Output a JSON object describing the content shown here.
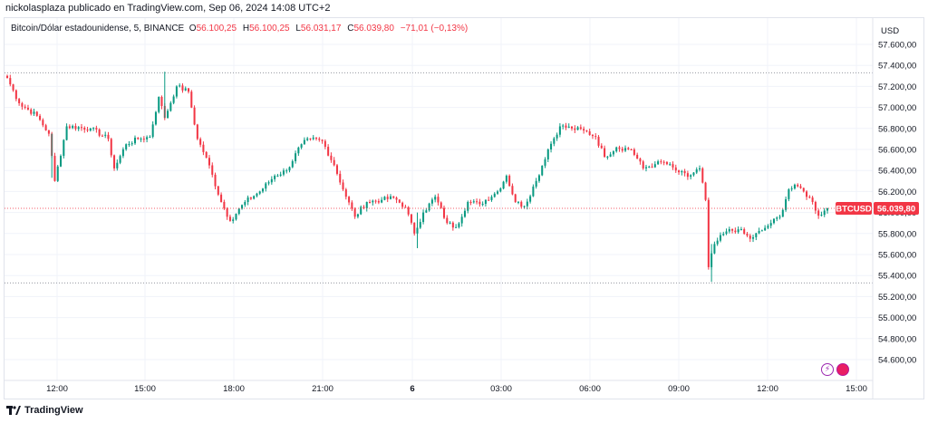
{
  "publisher": "nickolasplaza publicado en TradingView.com, Sep 06, 2024 14:08 UTC+2",
  "legend": {
    "symbol": "Bitcoin/Dólar estadounidense, 5, BINANCE",
    "o_label": "O",
    "o_value": "56.100,25",
    "h_label": "H",
    "h_value": "56.100,25",
    "l_label": "L",
    "l_value": "56.031,17",
    "c_label": "C",
    "c_value": "56.039,80",
    "change": "−71,01 (−0,13%)"
  },
  "brand": "TradingView",
  "colors": {
    "up": "#089981",
    "down": "#f23645",
    "grid": "#f0f3fa",
    "price_tag": "#f23645"
  },
  "icons": [
    "bolt-icon",
    "flag-icon",
    "tradingview-logo-icon"
  ],
  "chart_data": {
    "type": "candlestick",
    "currency_label": "USD",
    "y_ticks": [
      "57.600,00",
      "57.400,00",
      "57.200,00",
      "57.000,00",
      "56.800,00",
      "56.600,00",
      "56.400,00",
      "56.200,00",
      "56.000,00",
      "55.800,00",
      "55.600,00",
      "55.400,00",
      "55.200,00",
      "55.000,00",
      "54.800,00",
      "54.600,00"
    ],
    "y_tick_values": [
      57600,
      57400,
      57200,
      57000,
      56800,
      56600,
      56400,
      56200,
      56000,
      55800,
      55600,
      55400,
      55200,
      55000,
      54800,
      54600
    ],
    "x_ticks": [
      "12:00",
      "15:00",
      "18:00",
      "21:00",
      "6",
      "03:00",
      "06:00",
      "09:00",
      "12:00",
      "15:00"
    ],
    "ylim": [
      54500,
      57700
    ],
    "current_price": {
      "symbol": "BTCUSD",
      "label": "56.039,80",
      "value": 56039.8
    },
    "range_lines": [
      57330,
      55330
    ],
    "anchors": [
      [
        0,
        57280
      ],
      [
        4,
        57040
      ],
      [
        10,
        56920
      ],
      [
        14,
        56750
      ],
      [
        16,
        56300
      ],
      [
        20,
        56820
      ],
      [
        28,
        56800
      ],
      [
        34,
        56700
      ],
      [
        36,
        56420
      ],
      [
        40,
        56650
      ],
      [
        44,
        56700
      ],
      [
        48,
        56720
      ],
      [
        51,
        57100
      ],
      [
        53,
        56900
      ],
      [
        57,
        57200
      ],
      [
        61,
        57150
      ],
      [
        64,
        56700
      ],
      [
        67,
        56520
      ],
      [
        72,
        56100
      ],
      [
        75,
        55920
      ],
      [
        80,
        56100
      ],
      [
        85,
        56200
      ],
      [
        90,
        56350
      ],
      [
        94,
        56400
      ],
      [
        99,
        56650
      ],
      [
        102,
        56700
      ],
      [
        106,
        56680
      ],
      [
        110,
        56450
      ],
      [
        114,
        56150
      ],
      [
        117,
        55960
      ],
      [
        121,
        56100
      ],
      [
        126,
        56120
      ],
      [
        130,
        56140
      ],
      [
        134,
        56050
      ],
      [
        137,
        55800
      ],
      [
        140,
        56000
      ],
      [
        144,
        56150
      ],
      [
        148,
        55900
      ],
      [
        151,
        55860
      ],
      [
        155,
        56100
      ],
      [
        159,
        56080
      ],
      [
        165,
        56200
      ],
      [
        168,
        56350
      ],
      [
        171,
        56100
      ],
      [
        174,
        56060
      ],
      [
        178,
        56300
      ],
      [
        182,
        56600
      ],
      [
        186,
        56820
      ],
      [
        190,
        56800
      ],
      [
        194,
        56780
      ],
      [
        198,
        56720
      ],
      [
        201,
        56530
      ],
      [
        205,
        56620
      ],
      [
        210,
        56600
      ],
      [
        214,
        56420
      ],
      [
        218,
        56460
      ],
      [
        221,
        56480
      ],
      [
        225,
        56400
      ],
      [
        229,
        56340
      ],
      [
        233,
        56420
      ],
      [
        235,
        56120
      ],
      [
        236,
        55480
      ],
      [
        238,
        55700
      ],
      [
        242,
        55820
      ],
      [
        246,
        55840
      ],
      [
        250,
        55750
      ],
      [
        254,
        55830
      ],
      [
        257,
        55900
      ],
      [
        260,
        55960
      ],
      [
        263,
        56220
      ],
      [
        266,
        56250
      ],
      [
        268,
        56200
      ],
      [
        271,
        56100
      ],
      [
        273,
        55970
      ],
      [
        276,
        56039.8
      ]
    ]
  }
}
